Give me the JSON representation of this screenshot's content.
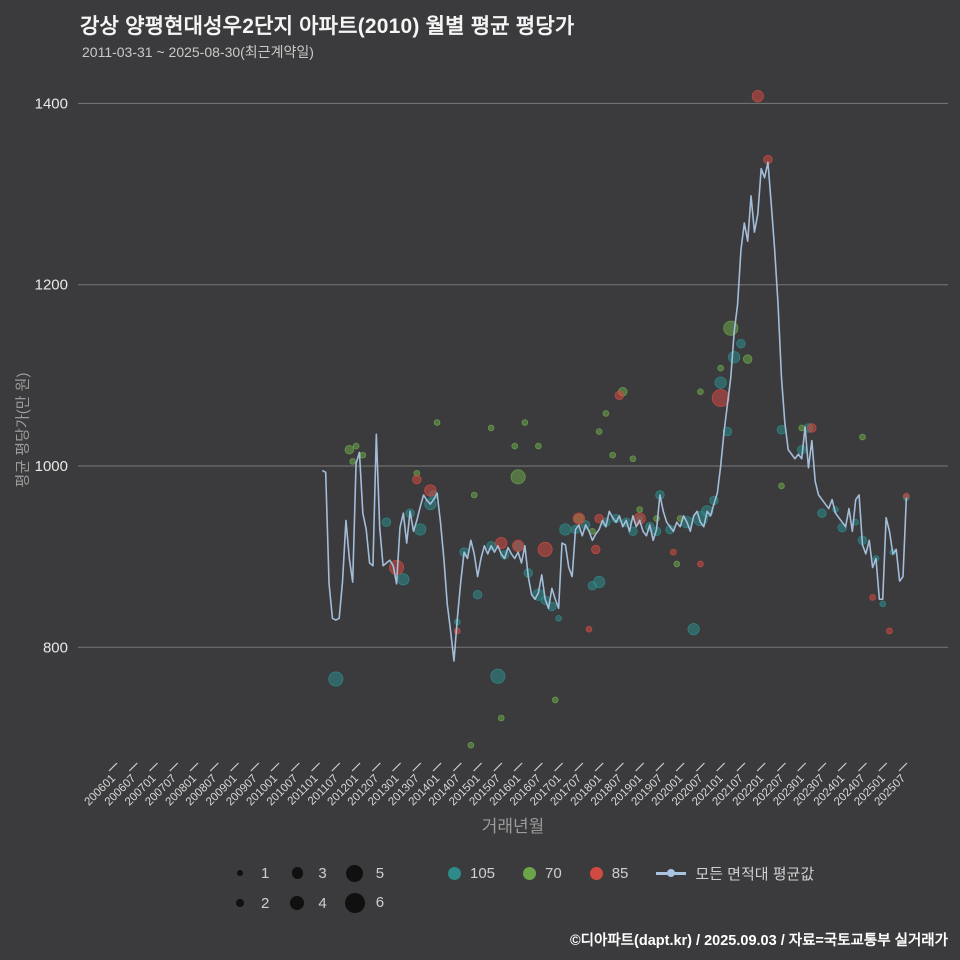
{
  "title": "강상 양평현대성우2단지 아파트(2010) 월별 평균 평당가",
  "subtitle": "2011-03-31 ~ 2025-08-30(최근계약일)",
  "footer": "©디아파트(dapt.kr) / 2025.09.03 / 자료=국토교통부 실거래가",
  "colors": {
    "background": "#3b3b3d",
    "grid": "#8e8e8e",
    "teal": "#2e8b8a",
    "green": "#6ba54a",
    "red": "#d04a42",
    "line": "#a9c4e0"
  },
  "legend": {
    "sizes": [
      {
        "label": "1",
        "size": 1
      },
      {
        "label": "2",
        "size": 2
      },
      {
        "label": "3",
        "size": 3
      },
      {
        "label": "4",
        "size": 4
      },
      {
        "label": "5",
        "size": 5
      },
      {
        "label": "6",
        "size": 6
      }
    ],
    "series": [
      {
        "label": "105",
        "color": "#2e8b8a",
        "marker": "dot"
      },
      {
        "label": "70",
        "color": "#6ba54a",
        "marker": "dot"
      },
      {
        "label": "85",
        "color": "#d04a42",
        "marker": "dot"
      },
      {
        "label": "모든 면적대 평균값",
        "color": "#a9c4e0",
        "marker": "line"
      }
    ]
  },
  "chart_data": {
    "type": "scatter",
    "title": "강상 양평현대성우2단지 아파트(2010) 월별 평균 평당가",
    "xlabel": "거래년월",
    "ylabel": "평균 평당가(만 원)",
    "ylim": [
      680,
      1450
    ],
    "yticks": [
      800,
      1000,
      1200,
      1400
    ],
    "xticks": [
      "200601",
      "200607",
      "200701",
      "200707",
      "200801",
      "200807",
      "200901",
      "200907",
      "201001",
      "201007",
      "201101",
      "201107",
      "201201",
      "201207",
      "201301",
      "201307",
      "201401",
      "201407",
      "201501",
      "201507",
      "201601",
      "201607",
      "201701",
      "201707",
      "201801",
      "201807",
      "201901",
      "201907",
      "202001",
      "202007",
      "202101",
      "202107",
      "202201",
      "202207",
      "202301",
      "202307",
      "202401",
      "202407",
      "202501",
      "202507"
    ],
    "series": [
      {
        "name": "105",
        "color": "#2e8b8a",
        "points": [
          [
            "201107",
            765,
            4
          ],
          [
            "201210",
            938,
            2
          ],
          [
            "201303",
            875,
            3
          ],
          [
            "201305",
            948,
            2
          ],
          [
            "201308",
            930,
            3
          ],
          [
            "201311",
            958,
            3
          ],
          [
            "201312",
            968,
            2
          ],
          [
            "201407",
            828,
            1
          ],
          [
            "201409",
            905,
            2
          ],
          [
            "201501",
            858,
            2
          ],
          [
            "201505",
            912,
            2
          ],
          [
            "201507",
            768,
            4
          ],
          [
            "201509",
            902,
            2
          ],
          [
            "201601",
            912,
            2
          ],
          [
            "201604",
            882,
            2
          ],
          [
            "201607",
            858,
            3
          ],
          [
            "201609",
            852,
            2
          ],
          [
            "201611",
            845,
            2
          ],
          [
            "201701",
            832,
            1
          ],
          [
            "201703",
            930,
            3
          ],
          [
            "201706",
            930,
            2
          ],
          [
            "201709",
            935,
            2
          ],
          [
            "201711",
            868,
            2
          ],
          [
            "201801",
            872,
            3
          ],
          [
            "201803",
            938,
            2
          ],
          [
            "201806",
            942,
            2
          ],
          [
            "201809",
            938,
            2
          ],
          [
            "201811",
            928,
            2
          ],
          [
            "201901",
            942,
            1
          ],
          [
            "201904",
            933,
            2
          ],
          [
            "201906",
            928,
            2
          ],
          [
            "201907",
            968,
            2
          ],
          [
            "201910",
            930,
            2
          ],
          [
            "202003",
            938,
            3
          ],
          [
            "202005",
            820,
            3
          ],
          [
            "202007",
            942,
            4
          ],
          [
            "202009",
            950,
            3
          ],
          [
            "202011",
            962,
            2
          ],
          [
            "202101",
            1092,
            3
          ],
          [
            "202103",
            1038,
            2
          ],
          [
            "202105",
            1120,
            3
          ],
          [
            "202107",
            1135,
            2
          ],
          [
            "202207",
            1040,
            2
          ],
          [
            "202301",
            1018,
            2
          ],
          [
            "202303",
            1042,
            2
          ],
          [
            "202307",
            948,
            2
          ],
          [
            "202311",
            952,
            1
          ],
          [
            "202401",
            932,
            2
          ],
          [
            "202405",
            938,
            1
          ],
          [
            "202407",
            918,
            2
          ],
          [
            "202411",
            898,
            1
          ],
          [
            "202501",
            848,
            1
          ],
          [
            "202504",
            905,
            1
          ],
          [
            "202508",
            965,
            1
          ]
        ]
      },
      {
        "name": "70",
        "color": "#6ba54a",
        "points": [
          [
            "201111",
            1018,
            2
          ],
          [
            "201112",
            1005,
            1
          ],
          [
            "201201",
            1022,
            1
          ],
          [
            "201203",
            1012,
            1
          ],
          [
            "201307",
            992,
            1
          ],
          [
            "201401",
            1048,
            1
          ],
          [
            "201411",
            692,
            1
          ],
          [
            "201412",
            968,
            1
          ],
          [
            "201505",
            1042,
            1
          ],
          [
            "201508",
            722,
            1
          ],
          [
            "201512",
            1022,
            1
          ],
          [
            "201601",
            988,
            4
          ],
          [
            "201603",
            1048,
            1
          ],
          [
            "201607",
            1022,
            1
          ],
          [
            "201612",
            742,
            1
          ],
          [
            "201707",
            942,
            2
          ],
          [
            "201711",
            928,
            1
          ],
          [
            "201801",
            1038,
            1
          ],
          [
            "201803",
            1058,
            1
          ],
          [
            "201805",
            1012,
            1
          ],
          [
            "201808",
            1082,
            2
          ],
          [
            "201811",
            1008,
            1
          ],
          [
            "201901",
            952,
            1
          ],
          [
            "201906",
            942,
            1
          ],
          [
            "201912",
            892,
            1
          ],
          [
            "202001",
            942,
            1
          ],
          [
            "202007",
            1082,
            1
          ],
          [
            "202101",
            1108,
            1
          ],
          [
            "202104",
            1152,
            4
          ],
          [
            "202109",
            1118,
            2
          ],
          [
            "202207",
            978,
            1
          ],
          [
            "202301",
            1042,
            1
          ],
          [
            "202407",
            1032,
            1
          ]
        ]
      },
      {
        "name": "85",
        "color": "#d04a42",
        "points": [
          [
            "201301",
            888,
            4
          ],
          [
            "201307",
            985,
            2
          ],
          [
            "201311",
            973,
            3
          ],
          [
            "201407",
            818,
            1
          ],
          [
            "201508",
            915,
            3
          ],
          [
            "201601",
            912,
            3
          ],
          [
            "201609",
            908,
            4
          ],
          [
            "201707",
            942,
            3
          ],
          [
            "201710",
            820,
            1
          ],
          [
            "201712",
            908,
            2
          ],
          [
            "201801",
            942,
            2
          ],
          [
            "201807",
            1078,
            2
          ],
          [
            "201901",
            942,
            3
          ],
          [
            "201911",
            905,
            1
          ],
          [
            "202007",
            892,
            1
          ],
          [
            "202101",
            1075,
            5
          ],
          [
            "202112",
            1408,
            3
          ],
          [
            "202203",
            1338,
            2
          ],
          [
            "202304",
            1042,
            2
          ],
          [
            "202410",
            855,
            1
          ],
          [
            "202503",
            818,
            1
          ],
          [
            "202508",
            967,
            1
          ]
        ]
      }
    ],
    "line": {
      "name": "모든 면적대 평균값",
      "color": "#a9c4e0",
      "start": "201103",
      "values": [
        995,
        993,
        870,
        832,
        830,
        832,
        873,
        940,
        898,
        872,
        1003,
        1015,
        948,
        930,
        893,
        890,
        1035,
        932,
        890,
        893,
        896,
        890,
        870,
        932,
        948,
        915,
        950,
        928,
        940,
        955,
        968,
        962,
        958,
        963,
        970,
        938,
        898,
        848,
        818,
        785,
        832,
        872,
        905,
        898,
        918,
        903,
        878,
        898,
        912,
        903,
        912,
        905,
        912,
        903,
        898,
        910,
        903,
        898,
        905,
        893,
        912,
        878,
        858,
        853,
        860,
        880,
        853,
        843,
        865,
        853,
        843,
        915,
        913,
        888,
        878,
        930,
        935,
        923,
        935,
        928,
        918,
        925,
        930,
        940,
        933,
        950,
        943,
        938,
        945,
        933,
        940,
        928,
        945,
        933,
        940,
        928,
        923,
        935,
        918,
        930,
        968,
        950,
        938,
        933,
        928,
        938,
        933,
        945,
        938,
        928,
        945,
        950,
        938,
        933,
        950,
        945,
        958,
        970,
        1000,
        1038,
        1068,
        1098,
        1148,
        1178,
        1238,
        1268,
        1248,
        1298,
        1258,
        1278,
        1328,
        1318,
        1335,
        1288,
        1238,
        1178,
        1098,
        1048,
        1018,
        1013,
        1008,
        1013,
        1008,
        1043,
        998,
        1028,
        983,
        968,
        963,
        958,
        953,
        963,
        948,
        943,
        938,
        933,
        953,
        928,
        963,
        968,
        913,
        903,
        918,
        888,
        898,
        853,
        853,
        943,
        928,
        903,
        908,
        873,
        878,
        965
      ]
    }
  }
}
